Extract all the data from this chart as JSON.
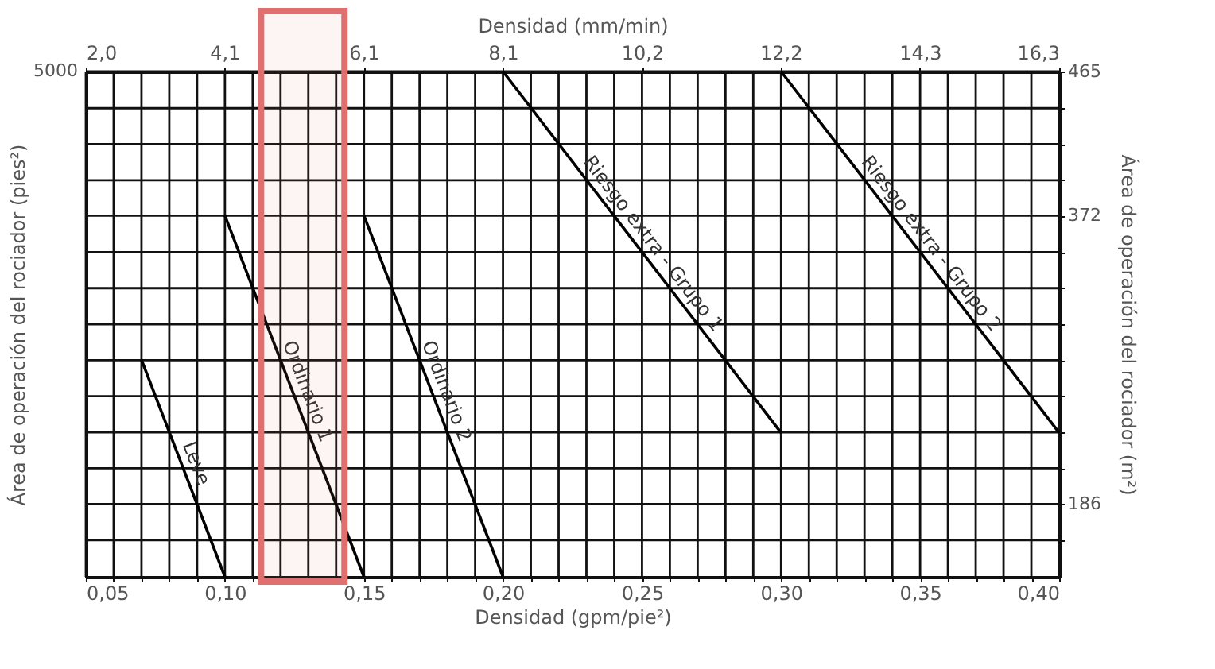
{
  "chart_data": {
    "type": "line",
    "xlabel": "Densidad (gpm/pie²)",
    "x2label": "Densidad (mm/min)",
    "ylabel": "Área de operación del rociador (pies²)",
    "y2label": "Área de operación del rociador (m²)",
    "annotations": [
      "5000"
    ],
    "series": [
      {
        "name": "Leve",
        "color": "#000000",
        "axis": "y2",
        "x": [
          0.07,
          0.1
        ],
        "values": [
          279,
          139
        ]
      },
      {
        "name": "Ordinario 1",
        "color": "#000000",
        "axis": "y2",
        "x": [
          0.1,
          0.15
        ],
        "values": [
          372,
          139
        ]
      },
      {
        "name": "Ordinario 2",
        "color": "#000000",
        "axis": "y2",
        "x": [
          0.15,
          0.2
        ],
        "values": [
          372,
          139
        ]
      },
      {
        "name": "Riesgo extra - Grupo 1",
        "color": "#000000",
        "axis": "y2",
        "x": [
          0.2,
          0.3
        ],
        "values": [
          465,
          232
        ]
      },
      {
        "name": "Riesgo extra - Grupo 2",
        "color": "#000000",
        "axis": "y2",
        "x": [
          0.3,
          0.4
        ],
        "values": [
          465,
          232
        ]
      }
    ],
    "xlim": [
      0.05,
      0.4
    ],
    "xticks": [
      {
        "value": 0.05,
        "label": "0,05"
      },
      {
        "value": 0.06,
        "label": null
      },
      {
        "value": 0.07,
        "label": null
      },
      {
        "value": 0.08,
        "label": null
      },
      {
        "value": 0.09,
        "label": null
      },
      {
        "value": 0.1,
        "label": "0,10"
      },
      {
        "value": 0.11,
        "label": null
      },
      {
        "value": 0.12,
        "label": null
      },
      {
        "value": 0.13,
        "label": null
      },
      {
        "value": 0.14,
        "label": null
      },
      {
        "value": 0.15,
        "label": "0,15"
      },
      {
        "value": 0.16,
        "label": null
      },
      {
        "value": 0.17,
        "label": null
      },
      {
        "value": 0.18,
        "label": null
      },
      {
        "value": 0.19,
        "label": null
      },
      {
        "value": 0.2,
        "label": "0,20"
      },
      {
        "value": 0.21,
        "label": null
      },
      {
        "value": 0.22,
        "label": null
      },
      {
        "value": 0.23,
        "label": null
      },
      {
        "value": 0.24,
        "label": null
      },
      {
        "value": 0.25,
        "label": "0,25"
      },
      {
        "value": 0.26,
        "label": null
      },
      {
        "value": 0.27,
        "label": null
      },
      {
        "value": 0.28,
        "label": null
      },
      {
        "value": 0.29,
        "label": null
      },
      {
        "value": 0.3,
        "label": "0,30"
      },
      {
        "value": 0.31,
        "label": null
      },
      {
        "value": 0.32,
        "label": null
      },
      {
        "value": 0.33,
        "label": null
      },
      {
        "value": 0.34,
        "label": null
      },
      {
        "value": 0.35,
        "label": "0,35"
      },
      {
        "value": 0.36,
        "label": null
      },
      {
        "value": 0.37,
        "label": null
      },
      {
        "value": 0.38,
        "label": null
      },
      {
        "value": 0.39,
        "label": null
      },
      {
        "value": 0.4,
        "label": "0,40"
      }
    ],
    "x2lim": [
      2.04,
      16.3
    ],
    "x2ticks": [
      {
        "value": 2.04,
        "label": "2,0"
      },
      {
        "value": 4.07,
        "label": "4,1"
      },
      {
        "value": 6.11,
        "label": "6,1"
      },
      {
        "value": 8.15,
        "label": "8,1"
      },
      {
        "value": 10.19,
        "label": "10,2"
      },
      {
        "value": 12.22,
        "label": "12,2"
      },
      {
        "value": 14.26,
        "label": "14,3"
      },
      {
        "value": 16.3,
        "label": "16,3"
      }
    ],
    "y2lim": [
      139,
      465
    ],
    "y2ticks": [
      {
        "value": 162.6,
        "label": null
      },
      186,
      {
        "value": 209,
        "label": null
      },
      {
        "value": 232.3,
        "label": null
      },
      {
        "value": 255.5,
        "label": null
      },
      {
        "value": 278.7,
        "label": null
      },
      {
        "value": 301.9,
        "label": null
      },
      {
        "value": 325.2,
        "label": null
      },
      {
        "value": 348.4,
        "label": null
      },
      372,
      {
        "value": 394.8,
        "label": null
      },
      {
        "value": 418.1,
        "label": null
      },
      {
        "value": 441.3,
        "label": null
      },
      465
    ],
    "bands": [
      {
        "axis": "x",
        "from": 0.113,
        "to": 0.143,
        "color": "#e07070"
      }
    ],
    "grid": true,
    "marker": "none",
    "line_style": "solid"
  }
}
